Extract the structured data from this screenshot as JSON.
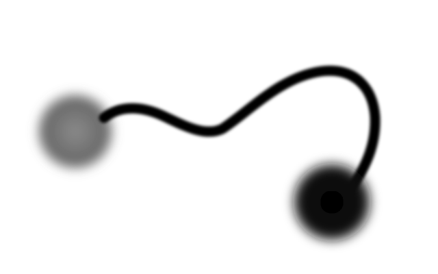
{
  "scene": {
    "background_color": "#ffffff",
    "stroke_color": "#000000",
    "start_node": {
      "center_color": "#8a8a8a",
      "mid_color": "#6a6a6a",
      "icon": "blurred-gray-circle"
    },
    "end_node": {
      "center_color": "#000000",
      "mid_color": "#111111",
      "icon": "blurred-black-circle"
    },
    "connector": {
      "icon": "curved-connector-line"
    }
  }
}
